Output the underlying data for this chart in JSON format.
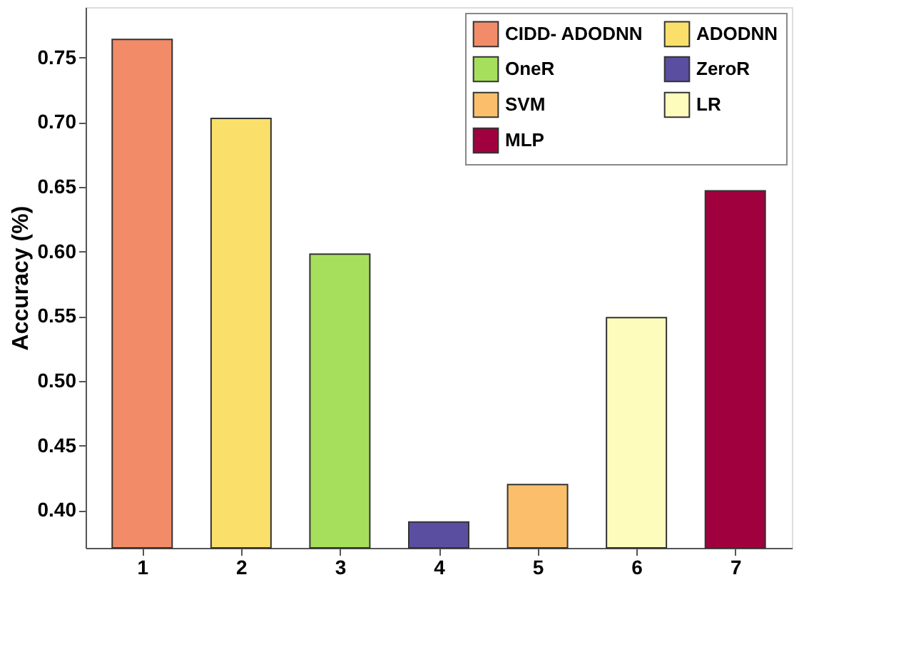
{
  "chart_data": {
    "type": "bar",
    "ylabel": "Accuracy (%)",
    "categories": [
      "1",
      "2",
      "3",
      "4",
      "5",
      "6",
      "7"
    ],
    "series": [
      {
        "name": "CIDD- ADODNN",
        "color": "#f28c68",
        "values": [
          0.764,
          null,
          null,
          null,
          null,
          null,
          null
        ]
      },
      {
        "name": "ADODNN",
        "color": "#fae06a",
        "values": [
          null,
          0.703,
          null,
          null,
          null,
          null,
          null
        ]
      },
      {
        "name": "OneR",
        "color": "#a6df5c",
        "values": [
          null,
          null,
          0.598,
          null,
          null,
          null,
          null
        ]
      },
      {
        "name": "ZeroR",
        "color": "#5a4ea0",
        "values": [
          null,
          null,
          null,
          0.391,
          null,
          null,
          null
        ]
      },
      {
        "name": "SVM",
        "color": "#fbbf6c",
        "values": [
          null,
          null,
          null,
          null,
          0.42,
          null,
          null
        ]
      },
      {
        "name": "LR",
        "color": "#fdfcbd",
        "values": [
          null,
          null,
          null,
          null,
          null,
          0.549,
          null
        ]
      },
      {
        "name": "MLP",
        "color": "#a1003e",
        "values": [
          null,
          null,
          null,
          null,
          null,
          null,
          0.647
        ]
      }
    ],
    "ylim": [
      0.371,
      0.789
    ],
    "yticks": [
      {
        "value": 0.4,
        "label": "0.40"
      },
      0.45,
      {
        "value": 0.5,
        "label": "0.50"
      },
      0.55,
      {
        "value": 0.6,
        "label": "0.60"
      },
      0.65,
      {
        "value": 0.7,
        "label": "0.70"
      },
      0.75
    ],
    "grid": false,
    "legend": "top right"
  }
}
